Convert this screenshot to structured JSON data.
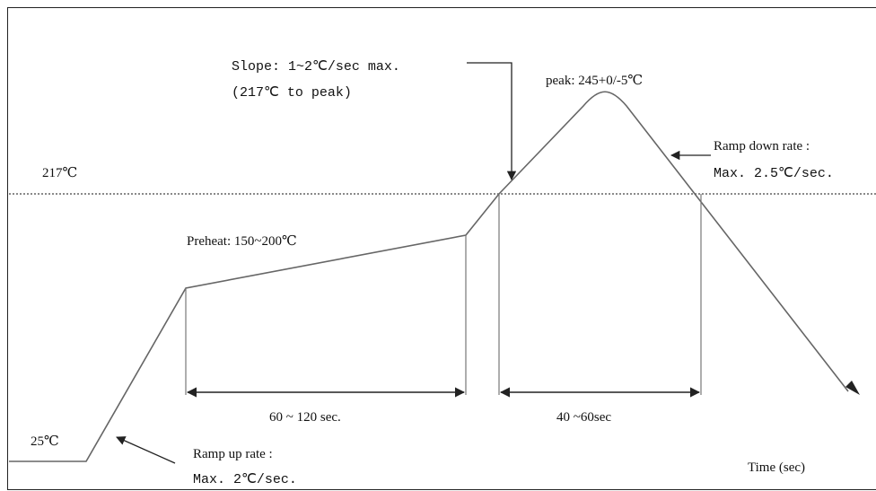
{
  "labels": {
    "temp_217": "217℃",
    "temp_25": "25℃",
    "slope_line1": "Slope: 1~2℃/sec max.",
    "slope_line2": "(217℃ to peak)",
    "peak": "peak: 245+0/-5℃",
    "ramp_down_line1": "Ramp down rate :",
    "ramp_down_line2": "Max. 2.5℃/sec.",
    "preheat": "Preheat: 150~200℃",
    "preheat_duration": "60 ~ 120 sec.",
    "above_217_duration": "40 ~60sec",
    "ramp_up_line1": "Ramp up rate :",
    "ramp_up_line2": "Max. 2℃/sec.",
    "x_axis": "Time (sec)"
  },
  "colors": {
    "curve": "#666666",
    "text": "#111111",
    "arrow": "#222222",
    "frame": "#222222"
  }
}
